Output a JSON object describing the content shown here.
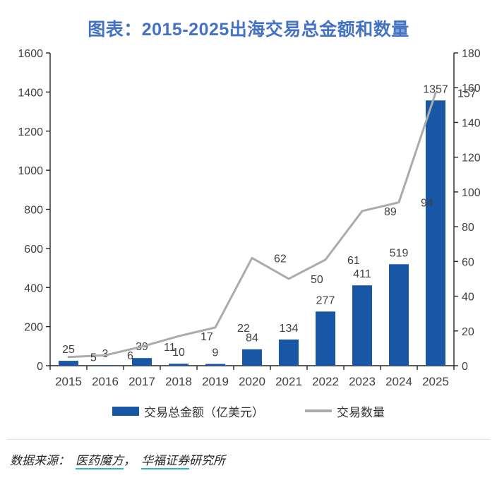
{
  "title": "图表：2015-2025出海交易总金额和数量",
  "colors": {
    "title": "#4472C4",
    "bar": "#1856A6",
    "line": "#ABABAB",
    "axis": "#262626",
    "labels": "#404040",
    "link_underline": "#2ab6c7",
    "divider": "#dbe2ee"
  },
  "chart_data": {
    "type": "bar",
    "subtype": "combo-bar-line-dual-axis",
    "title": "图表：2015-2025出海交易总金额和数量",
    "categories": [
      "2015",
      "2016",
      "2017",
      "2018",
      "2019",
      "2020",
      "2021",
      "2022",
      "2023",
      "2024",
      "2025"
    ],
    "series": [
      {
        "name": "交易总金额（亿美元）",
        "type": "bar",
        "axis": "left",
        "color": "#1856A6",
        "values": [
          25,
          3,
          39,
          10,
          9,
          84,
          134,
          277,
          411,
          519,
          1357
        ]
      },
      {
        "name": "交易数量",
        "type": "line",
        "axis": "right",
        "color": "#ABABAB",
        "values": [
          5,
          6,
          11,
          17,
          22,
          62,
          50,
          61,
          89,
          94,
          157
        ]
      }
    ],
    "left_axis": {
      "min": 0,
      "max": 1600,
      "step": 200
    },
    "right_axis": {
      "min": 0,
      "max": 180,
      "step": 20
    },
    "grid": false,
    "data_labels": true,
    "legend_position": "bottom"
  },
  "legend": {
    "bar_label": "交易总金额（亿美元）",
    "line_label": "交易数量"
  },
  "source": {
    "prefix": "数据来源：",
    "link1": "医药魔方",
    "separator": "，",
    "link2": "华福证券",
    "suffix": "研究所"
  }
}
